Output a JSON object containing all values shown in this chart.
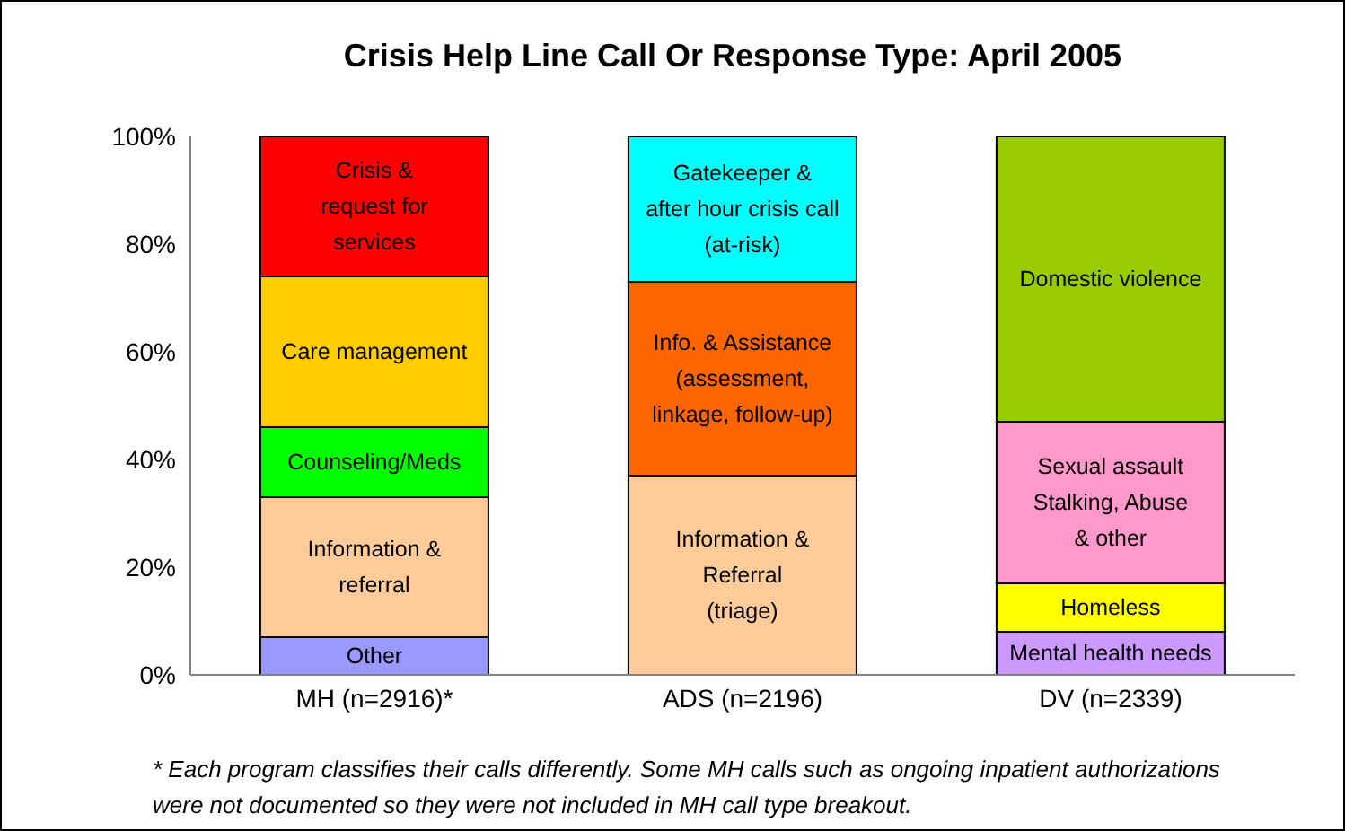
{
  "chart_data": {
    "type": "bar",
    "title": "Crisis Help Line Call Or Response Type: April 2005",
    "categories": [
      "MH (n=2916)*",
      "ADS (n=2196)",
      "DV (n=2339)"
    ],
    "stacked": true,
    "ylim": [
      0,
      100
    ],
    "yticks": [
      {
        "value": 0,
        "label": "0%"
      },
      {
        "value": 20,
        "label": "20%"
      },
      {
        "value": 40,
        "label": "40%"
      },
      {
        "value": 60,
        "label": "60%"
      },
      {
        "value": 80,
        "label": "80%"
      },
      {
        "value": 100,
        "label": "100%"
      }
    ],
    "grid": false,
    "legend": false,
    "series": [
      {
        "name": "Other",
        "color": "#9999ff",
        "values": [
          7,
          null,
          null
        ]
      },
      {
        "name": "Information &\nreferral",
        "color": "#ffcc99",
        "values": [
          26,
          null,
          null
        ]
      },
      {
        "name": "Counseling/Meds",
        "color": "#00ff00",
        "values": [
          13,
          null,
          null
        ]
      },
      {
        "name": "Care management",
        "color": "#ffcc00",
        "values": [
          28,
          null,
          null
        ]
      },
      {
        "name": "Crisis &\nrequest for\nservices",
        "color": "#ff0000",
        "values": [
          26,
          null,
          null
        ]
      },
      {
        "name": "Information &\nReferral\n(triage)",
        "color": "#ffcc99",
        "values": [
          null,
          37,
          null
        ]
      },
      {
        "name": "Info. & Assistance\n(assessment,\nlinkage, follow-up)",
        "color": "#ff6600",
        "values": [
          null,
          36,
          null
        ]
      },
      {
        "name": "Gatekeeper &\nafter hour crisis call\n(at-risk)",
        "color": "#00ffff",
        "values": [
          null,
          27,
          null
        ]
      },
      {
        "name": "Mental health needs",
        "color": "#cc99ff",
        "values": [
          null,
          null,
          8
        ]
      },
      {
        "name": "Homeless",
        "color": "#ffff00",
        "values": [
          null,
          null,
          9
        ]
      },
      {
        "name": "Sexual assault\nStalking, Abuse\n& other",
        "color": "#ff99cc",
        "values": [
          null,
          null,
          30
        ]
      },
      {
        "name": "Domestic violence",
        "color": "#99cc00",
        "values": [
          null,
          null,
          53
        ]
      }
    ],
    "annotations": [
      "* Each program classifies their calls differently. Some MH calls such as ongoing inpatient authorizations were not documented so they were not included in MH call type breakout."
    ]
  }
}
